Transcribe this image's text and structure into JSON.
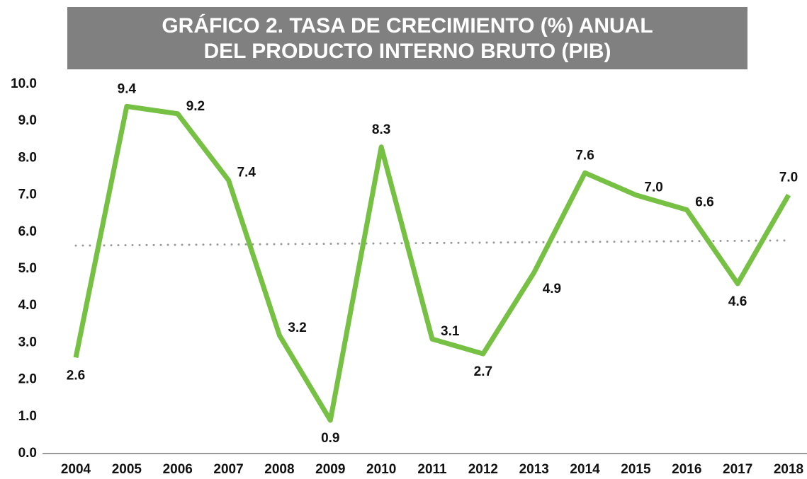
{
  "chart_data": {
    "type": "line",
    "title": [
      "GRÁFICO 2. TASA DE CRECIMIENTO (%) ANUAL",
      "DEL PRODUCTO INTERNO BRUTO (PIB)"
    ],
    "categories": [
      "2004",
      "2005",
      "2006",
      "2007",
      "2008",
      "2009",
      "2010",
      "2011",
      "2012",
      "2013",
      "2014",
      "2015",
      "2016",
      "2017",
      "2018"
    ],
    "series": [
      {
        "color": "#76c043",
        "values": [
          2.6,
          9.4,
          9.2,
          7.4,
          3.2,
          0.9,
          8.3,
          3.1,
          2.7,
          4.9,
          7.6,
          7.0,
          6.6,
          4.6,
          7.0
        ],
        "value_labels": [
          "2.6",
          "9.4",
          "9.2",
          "7.4",
          "3.2",
          "0.9",
          "8.3",
          "3.1",
          "2.7",
          "4.9",
          "7.6",
          "7.0",
          "6.6",
          "4.6",
          "7.0"
        ]
      }
    ],
    "trendline": {
      "values": [
        5.63,
        5.77
      ],
      "color": "#999999"
    },
    "ylim": [
      0,
      10
    ],
    "yticks": [
      {
        "value": 0,
        "label": "0.0"
      },
      {
        "value": 1,
        "label": "1.0"
      },
      {
        "value": 2,
        "label": "2.0"
      },
      {
        "value": 3,
        "label": "3.0"
      },
      {
        "value": 4,
        "label": "4.0"
      },
      {
        "value": 5,
        "label": "5.0"
      },
      {
        "value": 6,
        "label": "6.0"
      },
      {
        "value": 7,
        "label": "7.0"
      },
      {
        "value": 8,
        "label": "8.0"
      },
      {
        "value": 9,
        "label": "9.0"
      },
      {
        "value": 10,
        "label": "10.0"
      }
    ],
    "grid": false
  }
}
